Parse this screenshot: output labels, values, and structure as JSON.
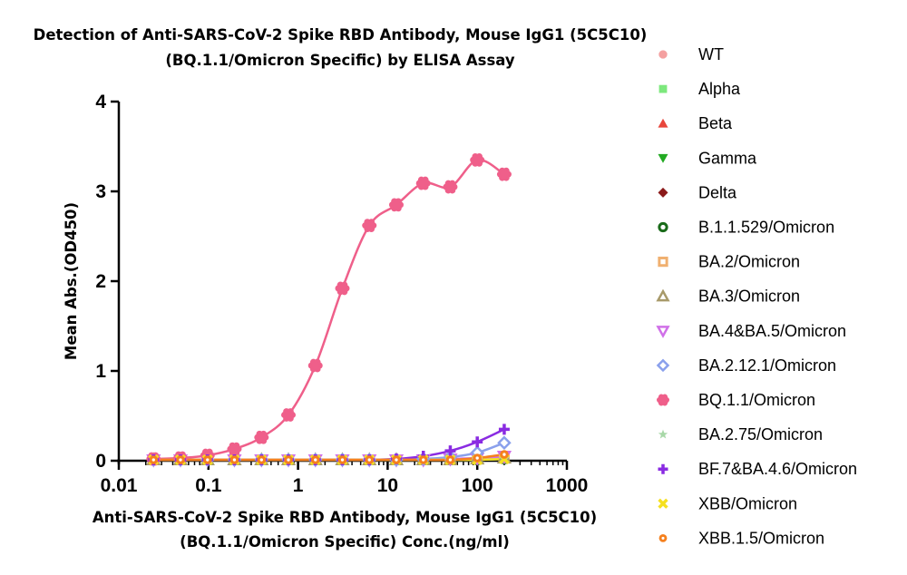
{
  "chart_data": {
    "type": "scatter",
    "title": "Detection of  Anti-SARS-CoV-2 Spike RBD Antibody, Mouse IgG1 (5C5C10)",
    "subtitle": "(BQ.1.1/Omicron Specific) by ELISA Assay",
    "xlabel_line1": "Anti-SARS-CoV-2 Spike RBD Antibody, Mouse IgG1 (5C5C10)",
    "xlabel_line2": "(BQ.1.1/Omicron Specific) Conc.(ng/ml)",
    "ylabel": "Mean Abs.(OD450)",
    "x_scale": "log",
    "xlim": [
      0.01,
      1000
    ],
    "ylim": [
      0,
      4
    ],
    "x_ticks": [
      "0.01",
      "0.1",
      "1",
      "10",
      "100",
      "1000"
    ],
    "y_ticks": [
      "0",
      "1",
      "2",
      "3",
      "4"
    ],
    "grid": false,
    "legend_position": "right",
    "x": [
      0.0244,
      0.0488,
      0.0977,
      0.195,
      0.391,
      0.781,
      1.5625,
      3.125,
      6.25,
      12.5,
      25,
      50,
      100,
      200
    ],
    "series": [
      {
        "name": "WT",
        "color": "#f4a0a0",
        "marker": "circle",
        "values": [
          0.01,
          0.01,
          0.01,
          0.01,
          0.01,
          0.01,
          0.01,
          0.01,
          0.01,
          0.01,
          0.01,
          0.01,
          0.01,
          0.02
        ]
      },
      {
        "name": "Alpha",
        "color": "#7de87d",
        "marker": "square",
        "values": [
          0.01,
          0.01,
          0.01,
          0.01,
          0.01,
          0.01,
          0.01,
          0.01,
          0.01,
          0.01,
          0.01,
          0.01,
          0.02,
          0.02
        ]
      },
      {
        "name": "Beta",
        "color": "#e8463c",
        "marker": "triangle-up",
        "values": [
          0.01,
          0.01,
          0.01,
          0.01,
          0.01,
          0.01,
          0.01,
          0.01,
          0.01,
          0.01,
          0.01,
          0.01,
          0.02,
          0.02
        ]
      },
      {
        "name": "Gamma",
        "color": "#22aa22",
        "marker": "triangle-down",
        "values": [
          0.01,
          0.01,
          0.01,
          0.01,
          0.01,
          0.01,
          0.01,
          0.01,
          0.01,
          0.01,
          0.01,
          0.01,
          0.01,
          0.02
        ]
      },
      {
        "name": "Delta",
        "color": "#8b1a1a",
        "marker": "diamond",
        "values": [
          0.01,
          0.01,
          0.01,
          0.01,
          0.01,
          0.01,
          0.01,
          0.01,
          0.01,
          0.01,
          0.01,
          0.01,
          0.01,
          0.02
        ]
      },
      {
        "name": "B.1.1.529/Omicron",
        "color": "#1a6b1a",
        "marker": "circle-open",
        "values": [
          0.01,
          0.01,
          0.01,
          0.01,
          0.01,
          0.01,
          0.01,
          0.01,
          0.01,
          0.01,
          0.01,
          0.01,
          0.01,
          0.02
        ]
      },
      {
        "name": "BA.2/Omicron",
        "color": "#f0b070",
        "marker": "square-open",
        "values": [
          0.01,
          0.01,
          0.01,
          0.01,
          0.01,
          0.01,
          0.01,
          0.01,
          0.01,
          0.01,
          0.01,
          0.01,
          0.02,
          0.03
        ]
      },
      {
        "name": "BA.3/Omicron",
        "color": "#a89a6a",
        "marker": "triangle-open",
        "values": [
          0.01,
          0.01,
          0.01,
          0.01,
          0.01,
          0.01,
          0.01,
          0.01,
          0.01,
          0.01,
          0.01,
          0.01,
          0.02,
          0.03
        ]
      },
      {
        "name": "BA.4&BA.5/Omicron",
        "color": "#d070e8",
        "marker": "triangle-down-open",
        "values": [
          0.01,
          0.01,
          0.01,
          0.01,
          0.01,
          0.01,
          0.01,
          0.01,
          0.01,
          0.01,
          0.01,
          0.02,
          0.03,
          0.05
        ]
      },
      {
        "name": "BA.2.12.1/Omicron",
        "color": "#8aa0ec",
        "marker": "diamond-open",
        "values": [
          0.01,
          0.01,
          0.01,
          0.01,
          0.01,
          0.01,
          0.01,
          0.01,
          0.01,
          0.01,
          0.02,
          0.04,
          0.09,
          0.2
        ]
      },
      {
        "name": "BQ.1.1/Omicron",
        "color": "#ef5f8a",
        "marker": "flower",
        "values": [
          0.02,
          0.03,
          0.06,
          0.13,
          0.26,
          0.51,
          1.06,
          1.92,
          2.62,
          2.85,
          3.09,
          3.05,
          3.35,
          3.19
        ]
      },
      {
        "name": "BA.2.75/Omicron",
        "color": "#a8d8a8",
        "marker": "star",
        "values": [
          0.01,
          0.01,
          0.01,
          0.01,
          0.01,
          0.01,
          0.01,
          0.01,
          0.01,
          0.01,
          0.01,
          0.01,
          0.01,
          0.02
        ]
      },
      {
        "name": "BF.7&BA.4.6/Omicron",
        "color": "#8a2be2",
        "marker": "plus",
        "values": [
          0.01,
          0.01,
          0.01,
          0.01,
          0.01,
          0.01,
          0.01,
          0.01,
          0.01,
          0.02,
          0.05,
          0.11,
          0.21,
          0.35
        ]
      },
      {
        "name": "XBB/Omicron",
        "color": "#f5e020",
        "marker": "cross",
        "values": [
          0.01,
          0.01,
          0.01,
          0.01,
          0.01,
          0.01,
          0.01,
          0.01,
          0.01,
          0.01,
          0.01,
          0.01,
          0.01,
          0.02
        ]
      },
      {
        "name": "XBB.1.5/Omicron",
        "color": "#f5801e",
        "marker": "circle-dot",
        "values": [
          0.01,
          0.01,
          0.01,
          0.01,
          0.01,
          0.01,
          0.01,
          0.01,
          0.01,
          0.01,
          0.01,
          0.01,
          0.03,
          0.07
        ]
      }
    ]
  }
}
